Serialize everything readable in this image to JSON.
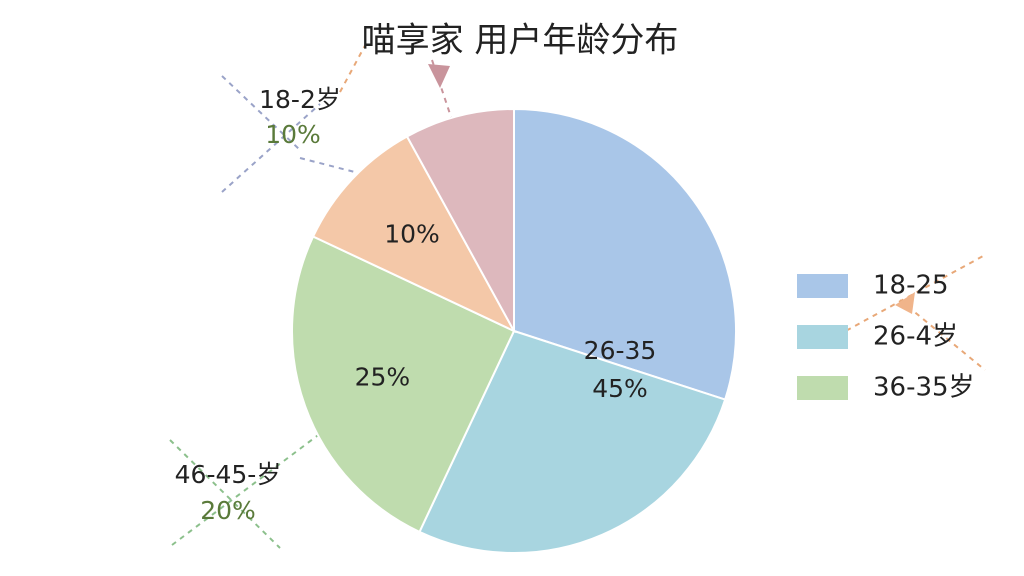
{
  "chart_data": {
    "type": "pie",
    "title": "喵享家 用户年龄分布",
    "categories": [
      "18-25",
      "26-4岁",
      "36-35岁",
      null,
      null
    ],
    "values": [
      30,
      27,
      25,
      10,
      8
    ],
    "value_labels": [
      null,
      null,
      "25%",
      "10%",
      null
    ],
    "colors": [
      "#a9c6e8",
      "#a8d5e0",
      "#bfdcae",
      "#f4c8a8",
      "#ddb8bd"
    ],
    "legend": "right",
    "annotations": [
      [
        "26-35",
        "45%"
      ],
      [
        "18-2岁",
        "10%"
      ],
      [
        "46-45-岁",
        "20%"
      ]
    ]
  }
}
